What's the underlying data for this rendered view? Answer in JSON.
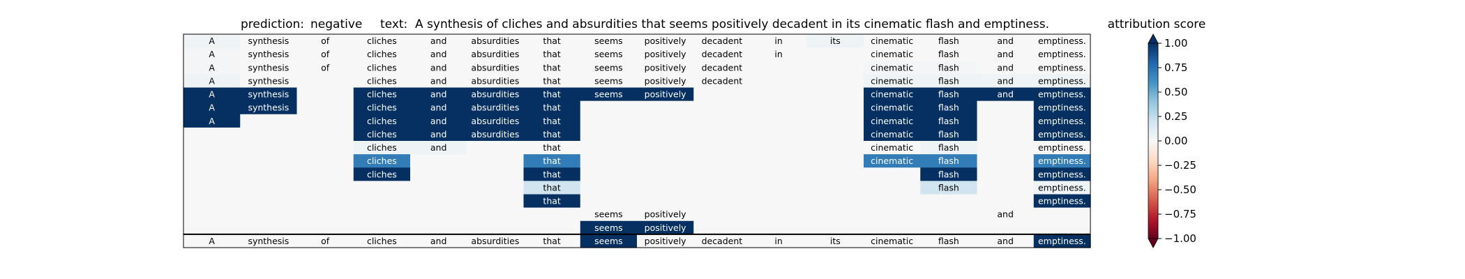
{
  "header": {
    "prediction_label": "prediction:",
    "prediction_value": "negative",
    "text_label": "text:",
    "text_value": "A synthesis of cliches and absurdities that seems positively decadent in its cinematic flash and emptiness."
  },
  "colorbar": {
    "title": "attribution score",
    "ticks": [
      "1.00",
      "0.75",
      "0.50",
      "0.25",
      "0.00",
      "−0.25",
      "−0.50",
      "−0.75",
      "−1.00"
    ],
    "colors": [
      "#67001f",
      "#b2182b",
      "#d6604d",
      "#f4a582",
      "#fddbc7",
      "#f7f7f7",
      "#d1e5f0",
      "#92c5de",
      "#4393c3",
      "#2166ac",
      "#053061"
    ]
  },
  "chart_data": {
    "type": "heatmap",
    "title": "",
    "tokens": [
      "A",
      "synthesis",
      "of",
      "cliches",
      "and",
      "absurdities",
      "that",
      "seems",
      "positively",
      "decadent",
      "in",
      "its",
      "cinematic",
      "flash",
      "and",
      "emptiness."
    ],
    "vlim": [
      -1,
      1
    ],
    "note_rows": "rows are pruned views of the sentence; a null cell means the token is dropped; the last row is the full sentence",
    "rows": [
      [
        0.05,
        0.0,
        0.0,
        0.0,
        0.0,
        0.0,
        0.0,
        0.0,
        0.0,
        0.0,
        0.0,
        0.05,
        0.0,
        0.0,
        0.0,
        0.0
      ],
      [
        0.02,
        0.0,
        0.0,
        0.0,
        0.0,
        0.0,
        0.0,
        0.0,
        0.0,
        0.0,
        0.0,
        null,
        0.0,
        0.0,
        0.0,
        0.0
      ],
      [
        0.02,
        0.0,
        0.0,
        0.0,
        0.0,
        0.0,
        0.0,
        0.0,
        0.0,
        0.0,
        null,
        null,
        0.02,
        0.02,
        0.0,
        0.0
      ],
      [
        0.05,
        0.0,
        null,
        0.0,
        0.0,
        0.0,
        0.0,
        0.0,
        0.0,
        0.0,
        null,
        null,
        0.05,
        0.05,
        0.05,
        0.05
      ],
      [
        1.0,
        1.0,
        null,
        1.0,
        1.0,
        1.0,
        1.0,
        1.0,
        1.0,
        null,
        null,
        null,
        1.0,
        1.0,
        1.0,
        1.0
      ],
      [
        1.0,
        1.0,
        null,
        1.0,
        1.0,
        1.0,
        1.0,
        null,
        null,
        null,
        null,
        null,
        1.0,
        1.0,
        null,
        1.0
      ],
      [
        1.0,
        null,
        null,
        1.0,
        1.0,
        1.0,
        1.0,
        null,
        null,
        null,
        null,
        null,
        1.0,
        1.0,
        null,
        1.0
      ],
      [
        null,
        null,
        null,
        1.0,
        1.0,
        1.0,
        1.0,
        null,
        null,
        null,
        null,
        null,
        1.0,
        1.0,
        null,
        1.0
      ],
      [
        null,
        null,
        null,
        0.05,
        0.05,
        null,
        0.0,
        null,
        null,
        null,
        null,
        null,
        0.0,
        0.05,
        null,
        0.0
      ],
      [
        null,
        null,
        null,
        0.7,
        null,
        null,
        0.7,
        null,
        null,
        null,
        null,
        null,
        0.7,
        0.7,
        null,
        0.7
      ],
      [
        null,
        null,
        null,
        1.0,
        null,
        null,
        1.0,
        null,
        null,
        null,
        null,
        null,
        null,
        1.0,
        null,
        1.0
      ],
      [
        null,
        null,
        null,
        null,
        null,
        null,
        0.2,
        null,
        null,
        null,
        null,
        null,
        null,
        0.2,
        null,
        0.05
      ],
      [
        null,
        null,
        null,
        null,
        null,
        null,
        1.0,
        null,
        null,
        null,
        null,
        null,
        null,
        null,
        null,
        1.0
      ],
      [
        null,
        null,
        null,
        null,
        null,
        null,
        null,
        0.0,
        0.0,
        null,
        null,
        null,
        null,
        null,
        0.0,
        null
      ],
      [
        null,
        null,
        null,
        null,
        null,
        null,
        null,
        1.0,
        1.0,
        null,
        null,
        null,
        null,
        null,
        null,
        null
      ],
      [
        0.0,
        0.0,
        0.0,
        0.0,
        0.0,
        0.0,
        0.0,
        1.0,
        0.0,
        0.0,
        0.0,
        0.0,
        0.0,
        0.0,
        0.0,
        1.0
      ]
    ]
  }
}
